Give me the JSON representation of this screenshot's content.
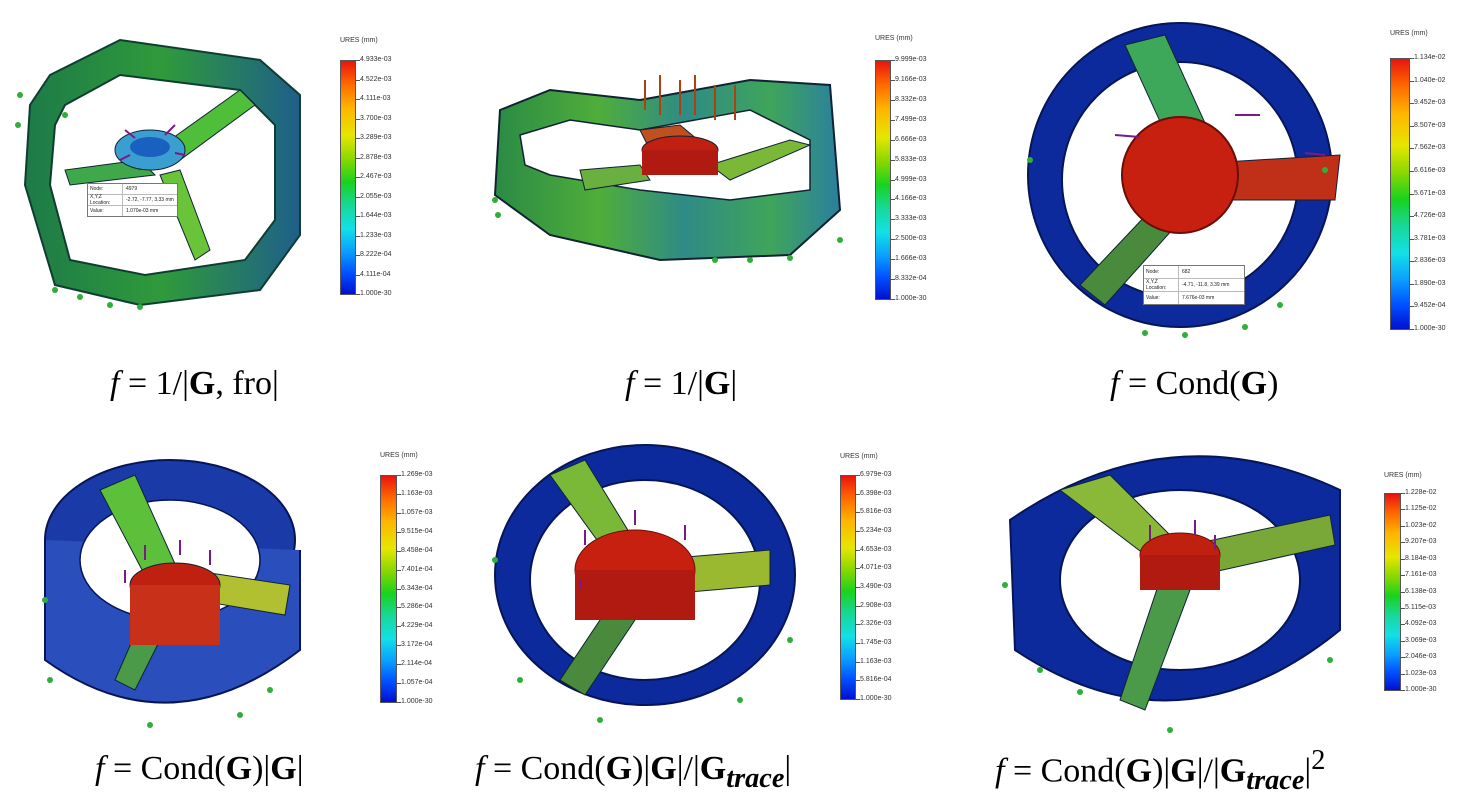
{
  "panels": [
    {
      "colorbar_title": "URES (mm)",
      "ticks": [
        "4.933e-03",
        "4.522e-03",
        "4.111e-03",
        "3.700e-03",
        "3.289e-03",
        "2.878e-03",
        "2.467e-03",
        "2.055e-03",
        "1.644e-03",
        "1.233e-03",
        "8.222e-04",
        "4.111e-04",
        "1.000e-30"
      ],
      "tooltip": {
        "node_label": "Node:",
        "node": "4979",
        "loc_label": "X,Y,Z Location:",
        "loc": "-2.72, -7.77, 3.33 mm",
        "value_label": "Value:",
        "value": "1.070e-03 mm"
      }
    },
    {
      "colorbar_title": "URES (mm)",
      "ticks": [
        "9.999e-03",
        "9.166e-03",
        "8.332e-03",
        "7.499e-03",
        "6.666e-03",
        "5.833e-03",
        "4.999e-03",
        "4.166e-03",
        "3.333e-03",
        "2.500e-03",
        "1.666e-03",
        "8.332e-04",
        "1.000e-30"
      ]
    },
    {
      "colorbar_title": "URES (mm)",
      "ticks": [
        "1.134e-02",
        "1.040e-02",
        "9.452e-03",
        "8.507e-03",
        "7.562e-03",
        "6.616e-03",
        "5.671e-03",
        "4.726e-03",
        "3.781e-03",
        "2.836e-03",
        "1.890e-03",
        "9.452e-04",
        "1.000e-30"
      ],
      "tooltip": {
        "node_label": "Node:",
        "node": "682",
        "loc_label": "X,Y,Z Location:",
        "loc": "-4.71, -11.8, 3.39 mm",
        "value_label": "Value:",
        "value": "7.676e-03 mm"
      }
    },
    {
      "colorbar_title": "URES (mm)",
      "ticks": [
        "1.269e-03",
        "1.163e-03",
        "1.057e-03",
        "9.515e-04",
        "8.458e-04",
        "7.401e-04",
        "6.343e-04",
        "5.286e-04",
        "4.229e-04",
        "3.172e-04",
        "2.114e-04",
        "1.057e-04",
        "1.000e-30"
      ]
    },
    {
      "colorbar_title": "URES (mm)",
      "ticks": [
        "6.979e-03",
        "6.398e-03",
        "5.816e-03",
        "5.234e-03",
        "4.653e-03",
        "4.071e-03",
        "3.490e-03",
        "2.908e-03",
        "2.326e-03",
        "1.745e-03",
        "1.163e-03",
        "5.816e-04",
        "1.000e-30"
      ]
    },
    {
      "colorbar_title": "URES (mm)",
      "ticks": [
        "1.228e-02",
        "1.125e-02",
        "1.023e-02",
        "9.207e-03",
        "8.184e-03",
        "7.161e-03",
        "6.138e-03",
        "5.115e-03",
        "4.092e-03",
        "3.069e-03",
        "2.046e-03",
        "1.023e-03",
        "1.000e-30"
      ]
    }
  ],
  "captions": [
    {
      "f": "f",
      "eq": "= 1/|",
      "G": "G",
      ",": ",",
      "rest": "fro|"
    },
    {
      "f": "f",
      "eq": "= 1/|",
      "G": "G",
      "rest": "|"
    },
    {
      "f": "f",
      "eq": "= Cond(",
      "G": "G",
      "rest": ")"
    },
    {
      "f": "f",
      "eq": "= Cond(",
      "G": "G",
      "mid": ")|",
      "G2": "G",
      "rest": "|"
    },
    {
      "f": "f",
      "eq": "= Cond(",
      "G": "G",
      "mid": ")|",
      "G2": "G",
      "mid2": "|/|",
      "G3": "G",
      "sub": "trace",
      "rest": "|"
    },
    {
      "f": "f",
      "eq": "= Cond(",
      "G": "G",
      "mid": ")|",
      "G2": "G",
      "mid2": "|/|",
      "G3": "G",
      "sub": "trace",
      "rest": "|",
      "sup": "2"
    }
  ],
  "colors": {
    "red": "#c8200e",
    "blue": "#0a1f8f",
    "green": "#2fae3a",
    "arrow": "#7a1a8a"
  }
}
